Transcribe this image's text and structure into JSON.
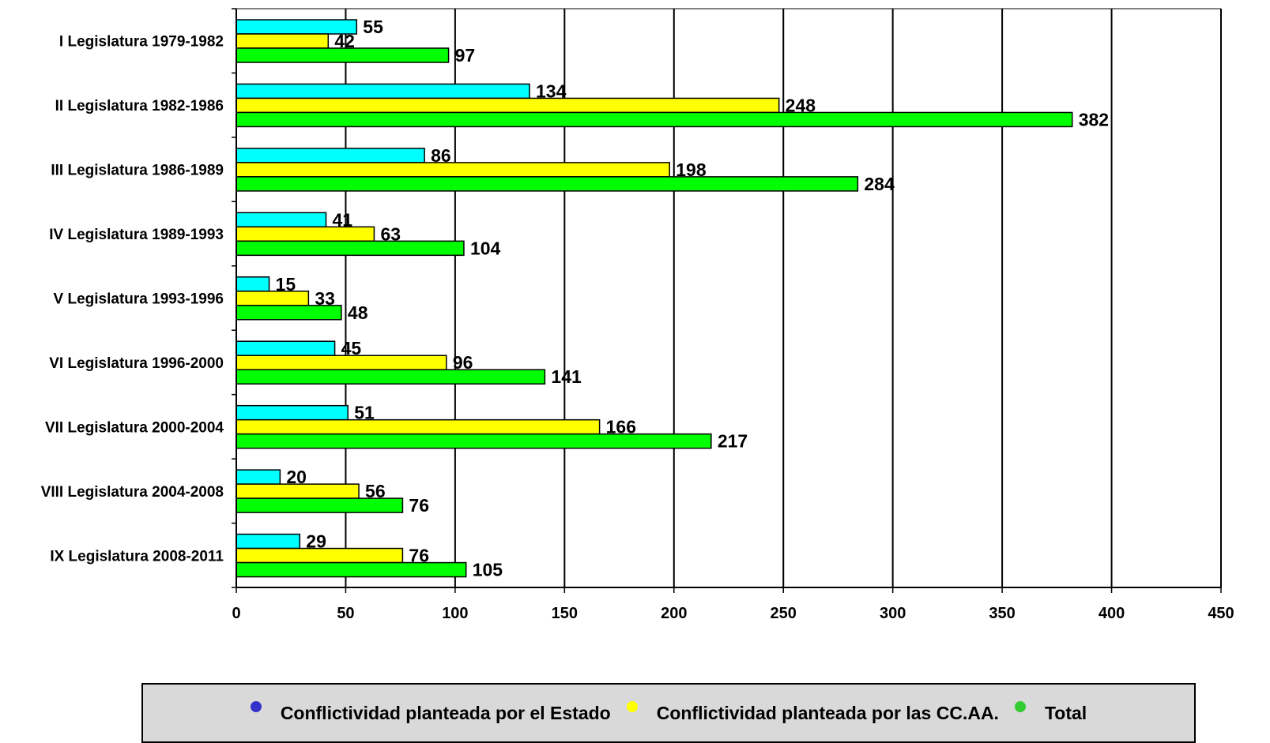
{
  "chart_data": {
    "type": "bar",
    "orientation": "horizontal",
    "categories": [
      "I Legislatura 1979-1982",
      "II Legislatura 1982-1986",
      "III Legislatura 1986-1989",
      "IV Legislatura 1989-1993",
      "V Legislatura 1993-1996",
      "VI Legislatura 1996-2000",
      "VII Legislatura 2000-2004",
      "VIII Legislatura 2004-2008",
      "IX Legislatura 2008-2011"
    ],
    "series": [
      {
        "name": "Conflictividad planteada por el Estado",
        "color": "#00ffff",
        "values": [
          55,
          134,
          86,
          41,
          15,
          45,
          51,
          20,
          29
        ]
      },
      {
        "name": "Conflictividad planteada por las CC.AA.",
        "color": "#ffff00",
        "values": [
          42,
          248,
          198,
          63,
          33,
          96,
          166,
          56,
          76
        ]
      },
      {
        "name": "Total",
        "color": "#00ff00",
        "values": [
          97,
          382,
          284,
          104,
          48,
          141,
          217,
          76,
          105
        ]
      }
    ],
    "xlim": [
      0,
      450
    ],
    "xticks": [
      0,
      50,
      100,
      150,
      200,
      250,
      300,
      350,
      400,
      450
    ],
    "grid": "vertical",
    "legend_position": "bottom",
    "legend_marker_colors": [
      "#3333cc",
      "#ffff00",
      "#33cc33"
    ]
  }
}
